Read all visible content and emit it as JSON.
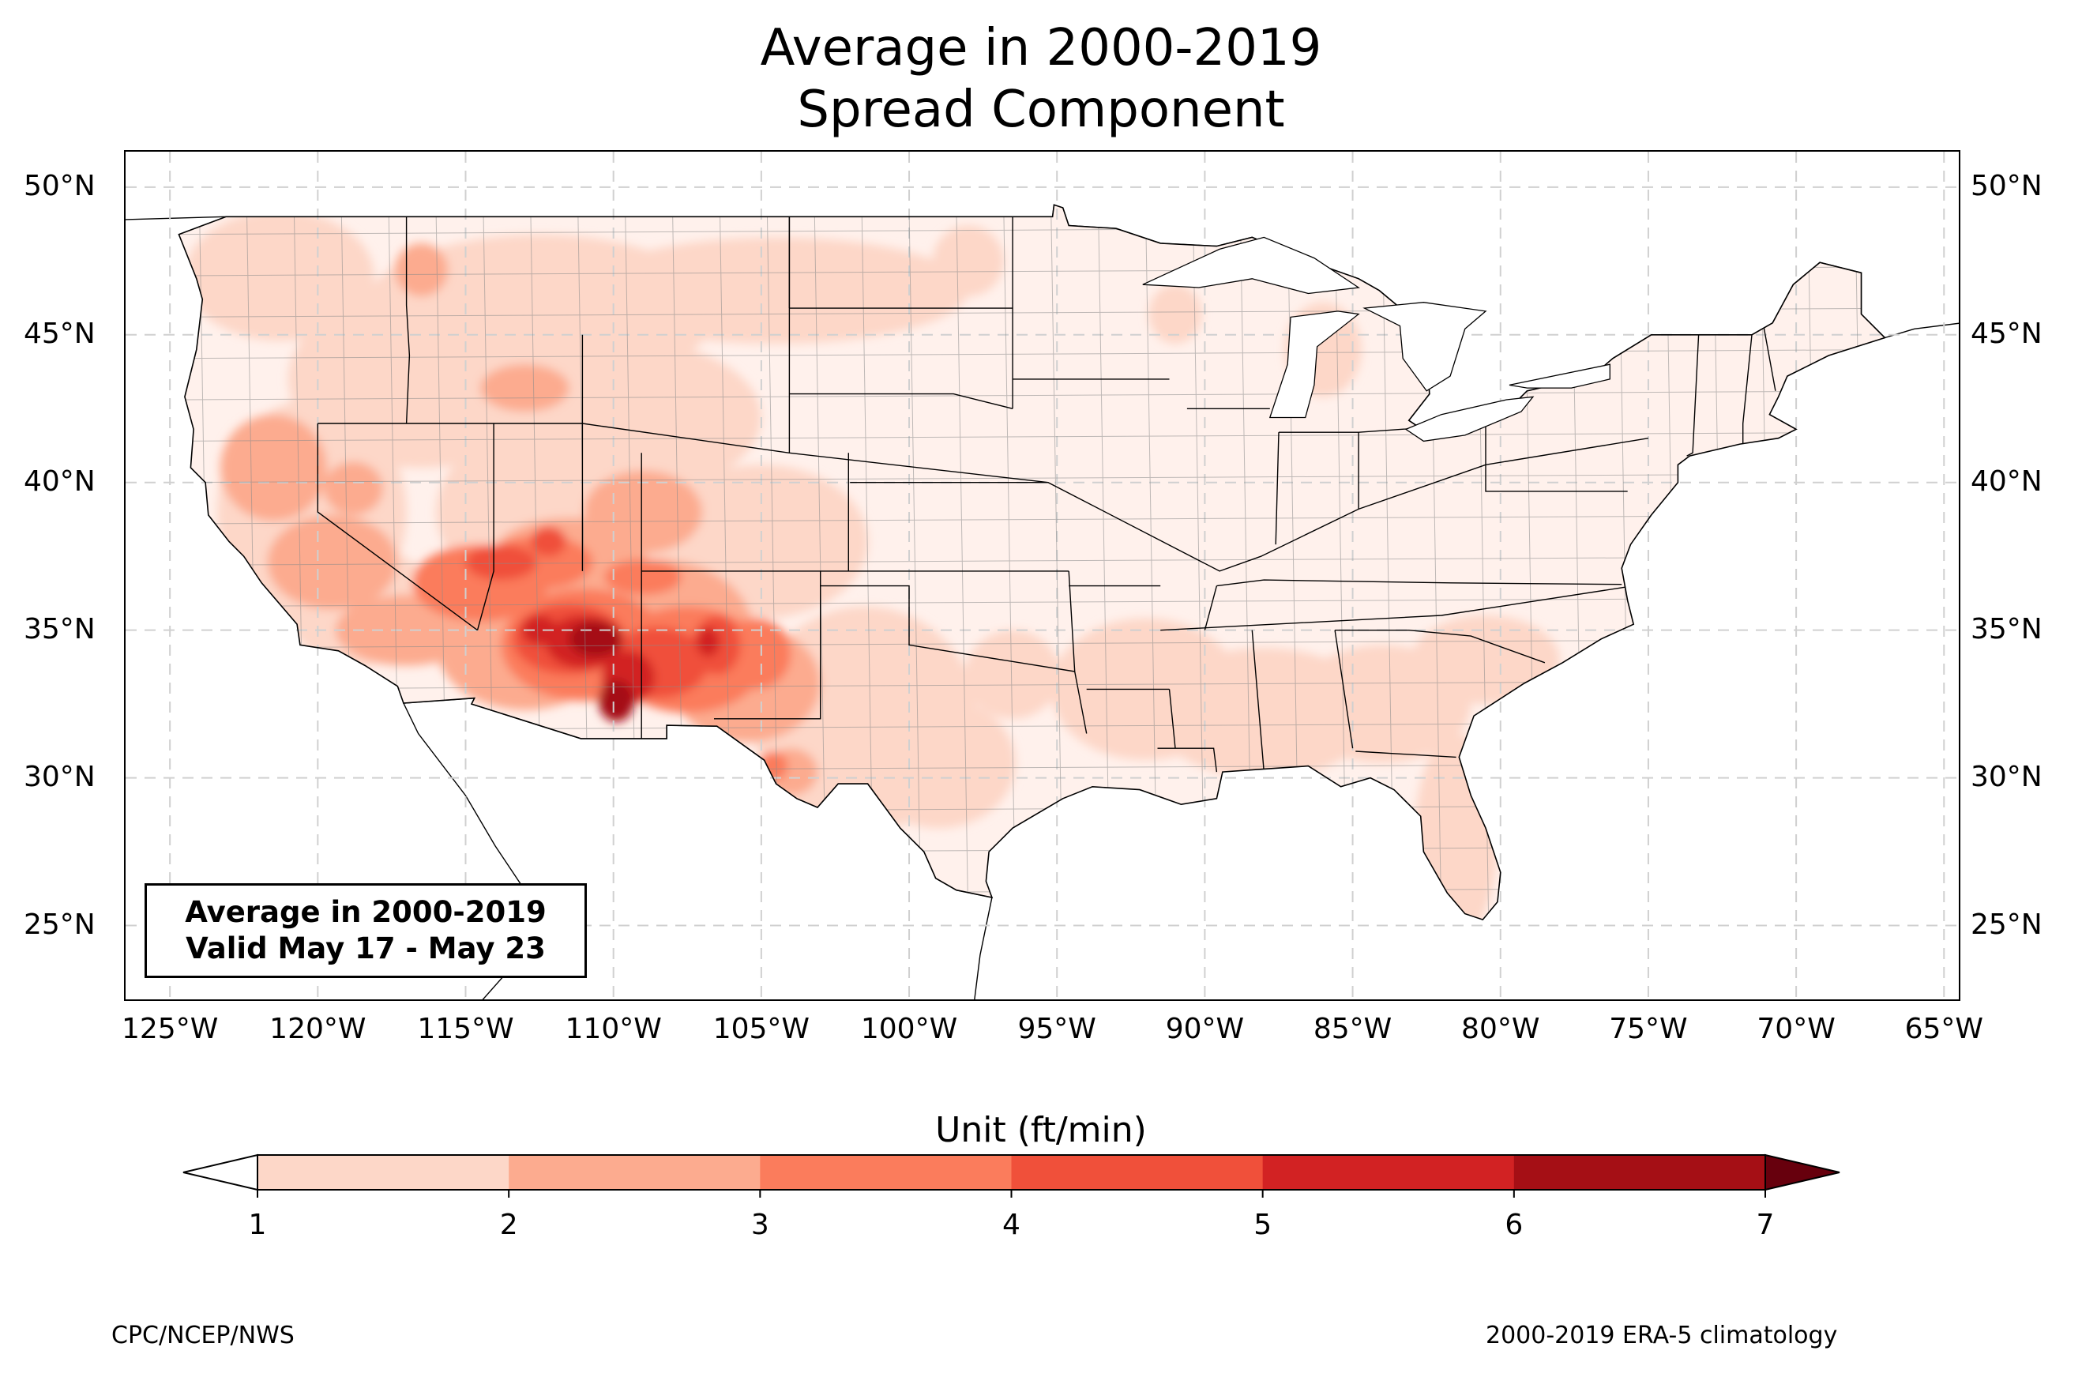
{
  "title": {
    "line1": "Average in 2000-2019",
    "line2": "Spread Component"
  },
  "map": {
    "lon_range": [
      -126.5,
      -64.5
    ],
    "lat_range": [
      22.5,
      51.2
    ],
    "lat_ticks": [
      "25°N",
      "30°N",
      "35°N",
      "40°N",
      "45°N",
      "50°N"
    ],
    "lon_ticks": [
      "125°W",
      "120°W",
      "115°W",
      "110°W",
      "105°W",
      "100°W",
      "95°W",
      "90°W",
      "85°W",
      "80°W",
      "75°W",
      "70°W",
      "65°W"
    ],
    "gridlines": "dashed",
    "field_name": "Spread Component",
    "max_region": "Arizona / New Mexico",
    "colors": {
      "land_base": "#fff1ec",
      "borders": "#000000",
      "counties": "#8a8a8a",
      "gridline": "#d0d0d0"
    }
  },
  "valid_box": {
    "line1": "Average in 2000-2019",
    "line2": "Valid May 17 - May 23"
  },
  "colorbar": {
    "title": "Unit (ft/min)",
    "levels": [
      1,
      2,
      3,
      4,
      5,
      6,
      7
    ],
    "labels": [
      "1",
      "2",
      "3",
      "4",
      "5",
      "6",
      "7"
    ],
    "colors": [
      "#fdd7c8",
      "#fcab8f",
      "#fb7c5c",
      "#f0503a",
      "#d22223",
      "#a50f15"
    ],
    "under_color": "#ffffff",
    "over_color": "#67000d",
    "extend": "both"
  },
  "footer": {
    "left": "CPC/NCEP/NWS",
    "right": "2000-2019 ERA-5 climatology"
  }
}
